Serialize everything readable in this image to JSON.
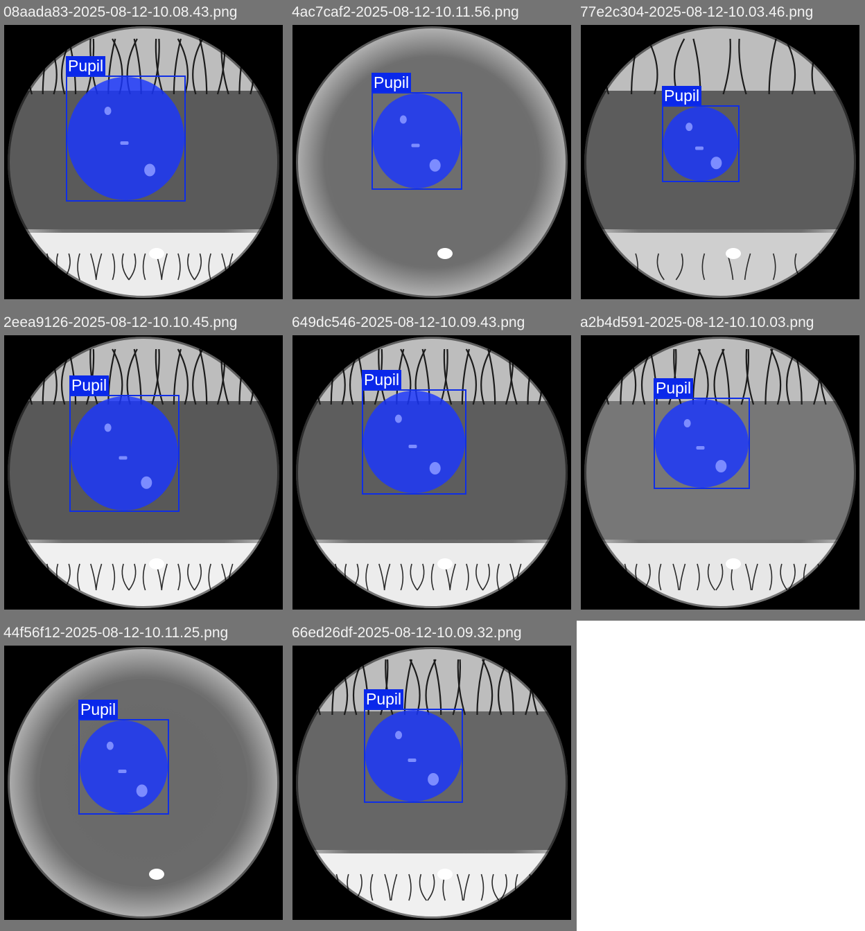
{
  "detection_label": "Pupil",
  "colors": {
    "tile_border": "#747474",
    "box_stroke": "#0f2ee6",
    "mask_fill": "#1a36ff",
    "label_bg": "#0a28ea",
    "label_text": "#ffffff"
  },
  "tiles": [
    {
      "filename": "08aada83-2025-08-12-10.08.43.png",
      "label": "Pupil"
    },
    {
      "filename": "4ac7caf2-2025-08-12-10.11.56.png",
      "label": "Pupil"
    },
    {
      "filename": "77e2c304-2025-08-12-10.03.46.png",
      "label": "Pupil"
    },
    {
      "filename": "2eea9126-2025-08-12-10.10.45.png",
      "label": "Pupil"
    },
    {
      "filename": "649dc546-2025-08-12-10.09.43.png",
      "label": "Pupil"
    },
    {
      "filename": "a2b4d591-2025-08-12-10.10.03.png",
      "label": "Pupil"
    },
    {
      "filename": "44f56f12-2025-08-12-10.11.25.png",
      "label": "Pupil"
    },
    {
      "filename": "66ed26df-2025-08-12-10.09.32.png",
      "label": "Pupil"
    }
  ]
}
